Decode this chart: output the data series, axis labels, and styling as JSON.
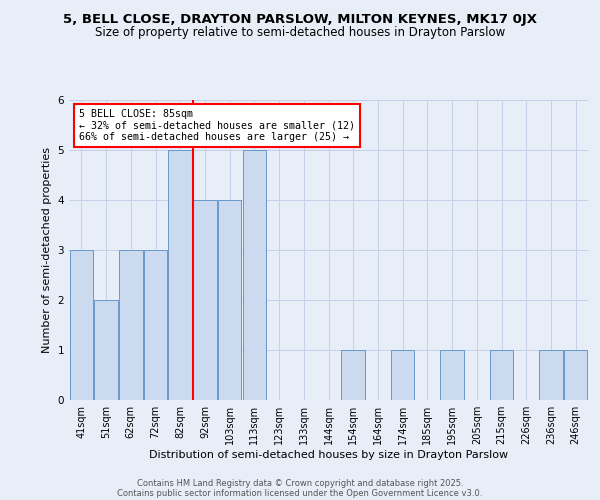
{
  "title_main": "5, BELL CLOSE, DRAYTON PARSLOW, MILTON KEYNES, MK17 0JX",
  "title_sub": "Size of property relative to semi-detached houses in Drayton Parslow",
  "xlabel": "Distribution of semi-detached houses by size in Drayton Parslow",
  "ylabel": "Number of semi-detached properties",
  "annotation_title": "5 BELL CLOSE: 85sqm",
  "annotation_line1": "← 32% of semi-detached houses are smaller (12)",
  "annotation_line2": "66% of semi-detached houses are larger (25) →",
  "bar_labels": [
    "41sqm",
    "51sqm",
    "62sqm",
    "72sqm",
    "82sqm",
    "92sqm",
    "103sqm",
    "113sqm",
    "123sqm",
    "133sqm",
    "144sqm",
    "154sqm",
    "164sqm",
    "174sqm",
    "185sqm",
    "195sqm",
    "205sqm",
    "215sqm",
    "226sqm",
    "236sqm",
    "246sqm"
  ],
  "bar_values": [
    3,
    2,
    3,
    3,
    5,
    4,
    4,
    5,
    0,
    0,
    0,
    1,
    0,
    1,
    0,
    1,
    0,
    1,
    0,
    1,
    1
  ],
  "bar_color": "#ccdaf0",
  "bar_edge_color": "#6699cc",
  "red_line_x": 4.5,
  "ylim_max": 6,
  "background_color": "#e8eef8",
  "grid_color": "#c5d0e8",
  "footer_line1": "Contains HM Land Registry data © Crown copyright and database right 2025.",
  "footer_line2": "Contains public sector information licensed under the Open Government Licence v3.0."
}
